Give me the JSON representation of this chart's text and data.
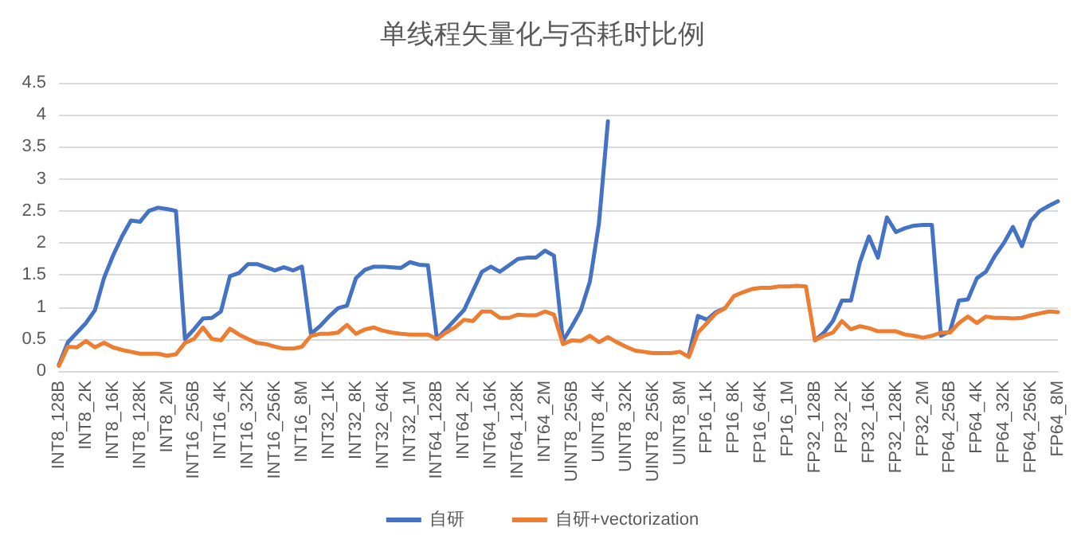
{
  "chart_data": {
    "type": "line",
    "title": "单线程矢量化与否耗时比例",
    "categories": [
      "INT8_128B",
      null,
      null,
      "INT8_2K",
      null,
      null,
      "INT8_16K",
      null,
      null,
      "INT8_128K",
      null,
      null,
      "INT8_2M",
      null,
      null,
      "INT16_256B",
      null,
      null,
      "INT16_4K",
      null,
      null,
      "INT16_32K",
      null,
      null,
      "INT16_256K",
      null,
      null,
      "INT16_8M",
      null,
      null,
      "INT32_1K",
      null,
      null,
      "INT32_8K",
      null,
      null,
      "INT32_64K",
      null,
      null,
      "INT32_1M",
      null,
      null,
      "INT64_128B",
      null,
      null,
      "INT64_2K",
      null,
      null,
      "INT64_16K",
      null,
      null,
      "INT64_128K",
      null,
      null,
      "INT64_2M",
      null,
      null,
      "UINT8_256B",
      null,
      null,
      "UINT8_4K",
      null,
      null,
      "UINT8_32K",
      null,
      null,
      "UINT8_256K",
      null,
      null,
      "UINT8_8M",
      null,
      null,
      "FP16_1K",
      null,
      null,
      "FP16_8K",
      null,
      null,
      "FP16_64K",
      null,
      null,
      "FP16_1M",
      null,
      null,
      "FP32_128B",
      null,
      null,
      "FP32_2K",
      null,
      null,
      "FP32_16K",
      null,
      null,
      "FP32_128K",
      null,
      null,
      "FP32_2M",
      null,
      null,
      "FP64_256B",
      null,
      null,
      "FP64_4K",
      null,
      null,
      "FP64_32K",
      null,
      null,
      "FP64_256K",
      null,
      null,
      "FP64_8M"
    ],
    "series": [
      {
        "name": "自研",
        "color": "#4472c4",
        "values": [
          0.1,
          0.45,
          0.6,
          0.75,
          0.95,
          1.45,
          1.8,
          2.1,
          2.35,
          2.33,
          2.5,
          2.55,
          2.53,
          2.5,
          0.5,
          0.65,
          0.82,
          0.83,
          0.93,
          1.48,
          1.53,
          1.67,
          1.67,
          1.62,
          1.57,
          1.62,
          1.57,
          1.63,
          0.58,
          0.7,
          0.85,
          0.98,
          1.02,
          1.45,
          1.58,
          1.63,
          1.63,
          1.62,
          1.61,
          1.7,
          1.66,
          1.65,
          0.5,
          0.65,
          0.8,
          0.95,
          1.25,
          1.55,
          1.63,
          1.55,
          1.65,
          1.75,
          1.77,
          1.77,
          1.88,
          1.8,
          0.47,
          0.7,
          0.95,
          1.4,
          2.3,
          3.9,
          null,
          null,
          null,
          null,
          null,
          null,
          null,
          null,
          0.25,
          0.86,
          0.8,
          0.92,
          0.98,
          null,
          null,
          null,
          null,
          null,
          null,
          null,
          null,
          null,
          0.48,
          0.6,
          0.78,
          1.1,
          1.1,
          1.7,
          2.1,
          1.77,
          2.4,
          2.17,
          2.23,
          2.27,
          2.28,
          2.28,
          0.55,
          0.62,
          1.1,
          1.12,
          1.45,
          1.55,
          1.8,
          2.0,
          2.25,
          1.95,
          2.35,
          2.5,
          2.58,
          2.65
        ]
      },
      {
        "name": "自研+vectorization",
        "color": "#ed7d31",
        "values": [
          0.08,
          0.38,
          0.37,
          0.47,
          0.37,
          0.44,
          0.37,
          0.33,
          0.3,
          0.27,
          0.27,
          0.27,
          0.24,
          0.26,
          0.44,
          0.5,
          0.68,
          0.5,
          0.48,
          0.66,
          0.57,
          0.5,
          0.44,
          0.42,
          0.38,
          0.35,
          0.35,
          0.38,
          0.55,
          0.58,
          0.58,
          0.6,
          0.72,
          0.58,
          0.65,
          0.68,
          0.63,
          0.6,
          0.58,
          0.57,
          0.57,
          0.57,
          0.5,
          0.6,
          0.68,
          0.8,
          0.78,
          0.93,
          0.93,
          0.83,
          0.83,
          0.88,
          0.87,
          0.87,
          0.93,
          0.88,
          0.42,
          0.48,
          0.47,
          0.55,
          0.45,
          0.53,
          0.45,
          0.38,
          0.32,
          0.3,
          0.28,
          0.28,
          0.28,
          0.3,
          0.22,
          0.6,
          0.75,
          0.9,
          0.98,
          1.17,
          1.23,
          1.28,
          1.3,
          1.3,
          1.32,
          1.32,
          1.33,
          1.32,
          0.48,
          0.55,
          0.6,
          0.78,
          0.65,
          0.7,
          0.67,
          0.62,
          0.62,
          0.62,
          0.57,
          0.55,
          0.52,
          0.55,
          0.6,
          0.6,
          0.75,
          0.85,
          0.75,
          0.85,
          0.83,
          0.83,
          0.82,
          0.83,
          0.87,
          0.9,
          0.93,
          0.92
        ]
      }
    ],
    "ylim": [
      0,
      4.5
    ],
    "yticks": [
      0,
      0.5,
      1,
      1.5,
      2,
      2.5,
      3,
      3.5,
      4,
      4.5
    ],
    "grid": "y",
    "legend": "bottom",
    "marker": "none",
    "line_style": "solid"
  }
}
